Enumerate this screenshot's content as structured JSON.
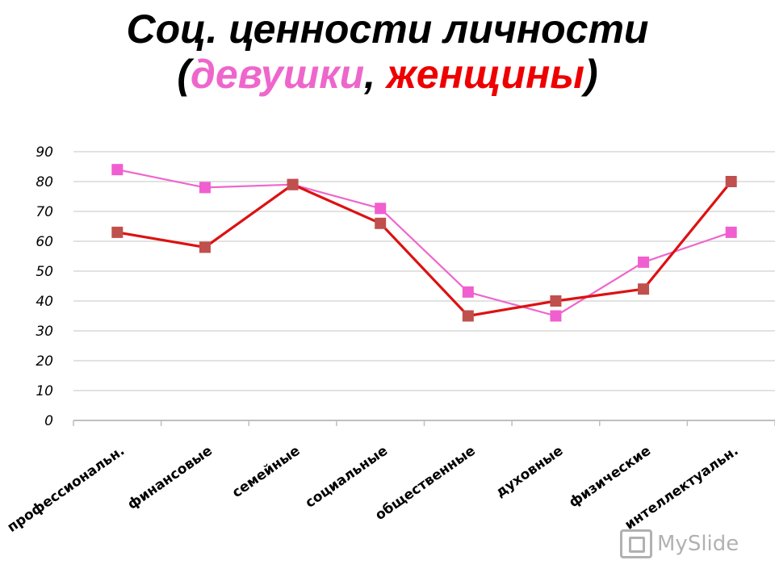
{
  "title": {
    "line1": "Соц. ценности личности",
    "open_paren": "(",
    "girls": "девушки",
    "comma": ", ",
    "women": "женщины",
    "close_paren": ")"
  },
  "colors": {
    "girls": "#ee66cc",
    "girls_marker": "#f05fd0",
    "women": "#dd1111",
    "women_marker": "#c0504d",
    "grid": "#d9d9d9",
    "axis": "#bfbfbf"
  },
  "chart_data": {
    "type": "line",
    "categories": [
      "профессиональн.",
      "финансовые",
      "семейные",
      "социальные",
      "общественные",
      "духовные",
      "физические",
      "интеллектуальн."
    ],
    "series": [
      {
        "name": "девушки",
        "values": [
          84,
          78,
          79,
          71,
          43,
          35,
          53,
          63
        ]
      },
      {
        "name": "женщины",
        "values": [
          63,
          58,
          79,
          66,
          35,
          40,
          44,
          80
        ]
      }
    ],
    "ylim": [
      0,
      90
    ],
    "yticks": [
      0,
      10,
      20,
      30,
      40,
      50,
      60,
      70,
      80,
      90
    ],
    "grid": true,
    "legend": "none"
  },
  "watermark": {
    "text": "MySlide"
  }
}
